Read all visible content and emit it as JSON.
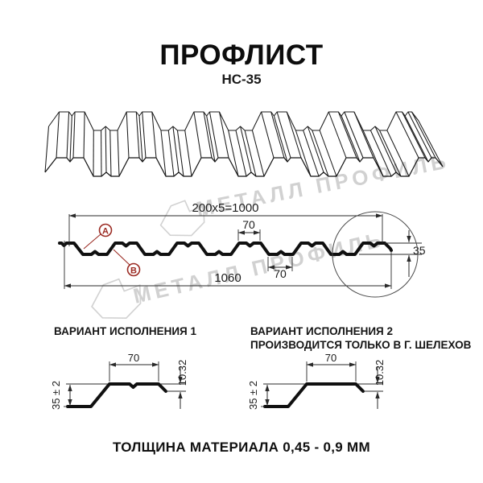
{
  "title": "ПРОФЛИСТ",
  "subtitle": "НС-35",
  "watermark": {
    "text": "МЕТАЛЛ ПРОФИЛЬ"
  },
  "cross_section": {
    "dim_top_run": "200x5=1000",
    "dim_rib_top_width": "70",
    "dim_valley_width": "70",
    "dim_total_width": "1060",
    "dim_height": "35",
    "callout_a": "А",
    "callout_b": "В"
  },
  "variant1": {
    "heading": "ВАРИАНТ ИСПОЛНЕНИЯ 1",
    "dim_flange": "70",
    "dim_edge_drop": "10.32",
    "dim_height": "35 ± 2"
  },
  "variant2": {
    "heading_line1": "ВАРИАНТ ИСПОЛНЕНИЯ 2",
    "heading_line2": "ПРОИЗВОДИТСЯ ТОЛЬКО В Г. ШЕЛЕХОВ",
    "dim_flange": "70",
    "dim_edge_drop": "10.32",
    "dim_height": "35 ± 2"
  },
  "footer": "ТОЛЩИНА МАТЕРИАЛА 0,45 - 0,9 ММ",
  "colors": {
    "accent_red": "#9b2b23",
    "line": "#101010",
    "watermark": "#c6c6c6"
  }
}
